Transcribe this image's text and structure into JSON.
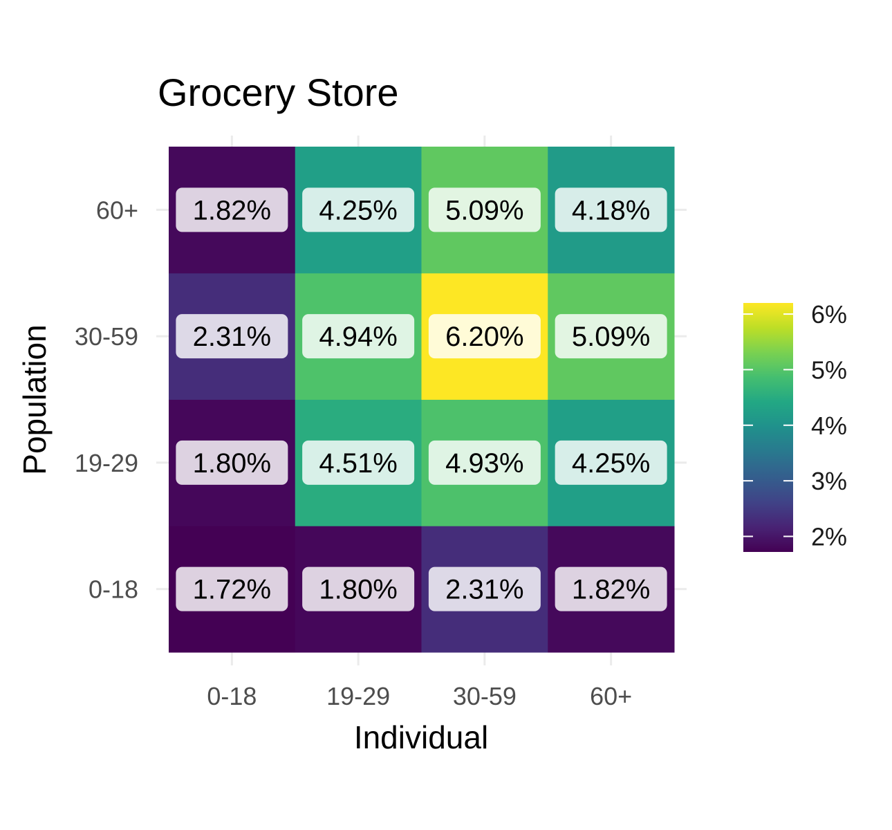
{
  "chart_data": {
    "type": "heatmap",
    "title": "Grocery Store",
    "xlabel": "Individual",
    "ylabel": "Population",
    "x_categories": [
      "0-18",
      "19-29",
      "30-59",
      "60+"
    ],
    "y_categories": [
      "0-18",
      "19-29",
      "30-59",
      "60+"
    ],
    "cells": [
      {
        "x": "0-18",
        "y": "0-18",
        "value": 1.72,
        "label": "1.72%"
      },
      {
        "x": "19-29",
        "y": "0-18",
        "value": 1.8,
        "label": "1.80%"
      },
      {
        "x": "30-59",
        "y": "0-18",
        "value": 2.31,
        "label": "2.31%"
      },
      {
        "x": "60+",
        "y": "0-18",
        "value": 1.82,
        "label": "1.82%"
      },
      {
        "x": "0-18",
        "y": "19-29",
        "value": 1.8,
        "label": "1.80%"
      },
      {
        "x": "19-29",
        "y": "19-29",
        "value": 4.51,
        "label": "4.51%"
      },
      {
        "x": "30-59",
        "y": "19-29",
        "value": 4.93,
        "label": "4.93%"
      },
      {
        "x": "60+",
        "y": "19-29",
        "value": 4.25,
        "label": "4.25%"
      },
      {
        "x": "0-18",
        "y": "30-59",
        "value": 2.31,
        "label": "2.31%"
      },
      {
        "x": "19-29",
        "y": "30-59",
        "value": 4.94,
        "label": "4.94%"
      },
      {
        "x": "30-59",
        "y": "30-59",
        "value": 6.2,
        "label": "6.20%"
      },
      {
        "x": "60+",
        "y": "30-59",
        "value": 5.09,
        "label": "5.09%"
      },
      {
        "x": "0-18",
        "y": "60+",
        "value": 1.82,
        "label": "1.82%"
      },
      {
        "x": "19-29",
        "y": "60+",
        "value": 4.25,
        "label": "4.25%"
      },
      {
        "x": "30-59",
        "y": "60+",
        "value": 5.09,
        "label": "5.09%"
      },
      {
        "x": "60+",
        "y": "60+",
        "value": 4.18,
        "label": "4.18%"
      }
    ],
    "colorbar": {
      "palette": "viridis",
      "range": [
        1.72,
        6.2
      ],
      "ticks": [
        2,
        3,
        4,
        5,
        6
      ],
      "tick_labels": [
        "2%",
        "3%",
        "4%",
        "5%",
        "6%"
      ],
      "position": "right"
    },
    "grid": true
  }
}
